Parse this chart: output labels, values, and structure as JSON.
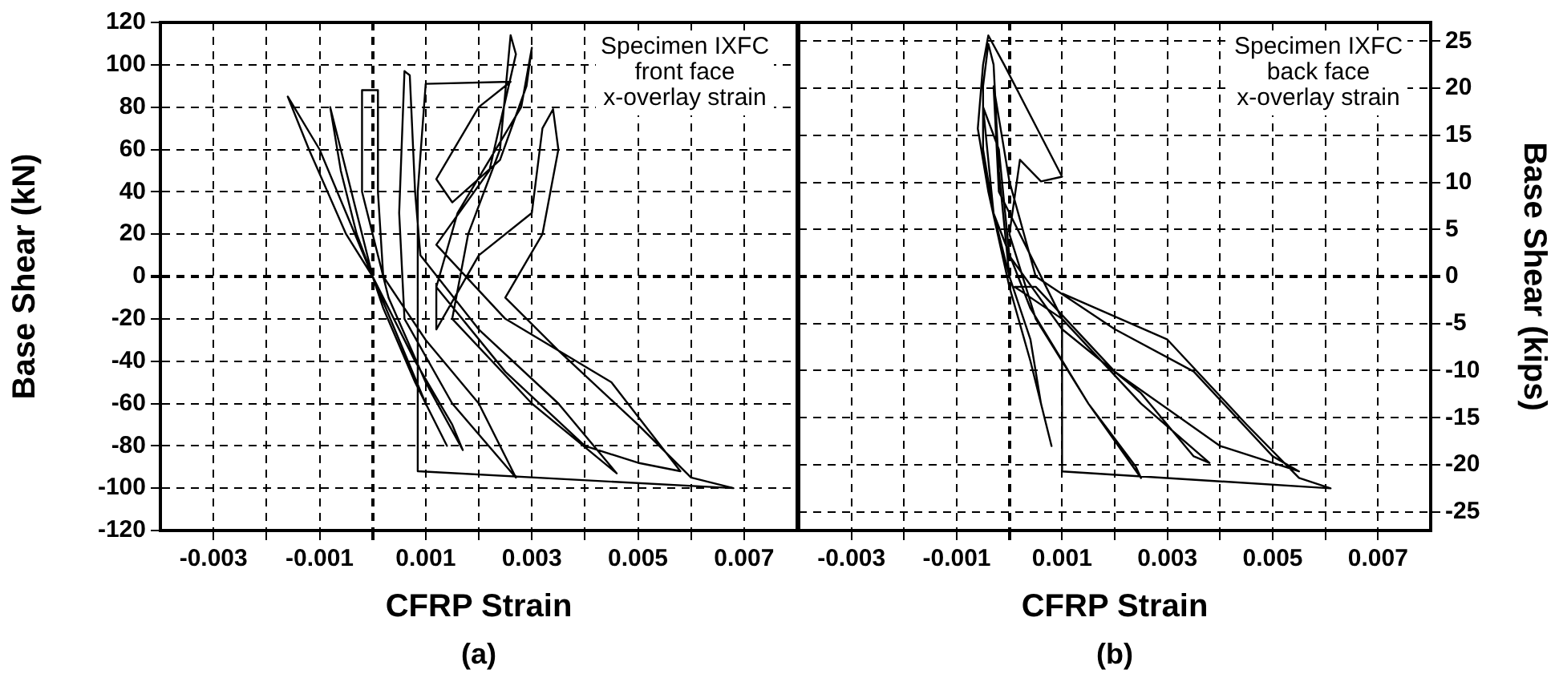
{
  "chart_data": [
    {
      "type": "line",
      "xlabel": "CFRP Strain",
      "ylabel": "Base Shear (kN)",
      "annotations": [
        "Specimen IXFC front face x-overlay strain",
        "(a)"
      ],
      "xlim": [
        -0.004,
        0.008
      ],
      "xticks": [
        -0.003,
        {
          "value": -0.002,
          "label": null
        },
        -0.001,
        {
          "value": 0,
          "label": null
        },
        0.001,
        {
          "value": 0.002,
          "label": null
        },
        0.003,
        {
          "value": 0.004,
          "label": null
        },
        0.005,
        {
          "value": 0.006,
          "label": null
        },
        0.007
      ],
      "ylim": [
        -120,
        120
      ],
      "yticks": [
        -120,
        -100,
        -80,
        -60,
        -40,
        -20,
        0,
        20,
        40,
        60,
        80,
        100,
        120
      ],
      "grid": true,
      "legend": false,
      "marker": "none",
      "line_style": "solid",
      "series": [
        {
          "color": "#000000",
          "x": [
            0,
            -0.0003,
            -0.0006,
            -0.0008,
            -0.0004,
            0,
            0.0005,
            0.001,
            0.0014,
            0.0008,
            0.0002,
            0,
            -0.0005,
            -0.001,
            -0.0016,
            -0.0012,
            -0.0005,
            0,
            0.0008,
            0.0015,
            0.0017,
            0.001,
            0.0003,
            -0.0002,
            -0.0002,
            0.0001,
            0.0001,
            0.0002,
            0.001,
            0.002,
            0.0025,
            0.0027,
            0.0015,
            0.0006,
            0.0005,
            0.0006,
            0.0007,
            0.0008,
            0.0009,
            0.002,
            0.0035,
            0.0045,
            0.0046,
            0.003,
            0.0015,
            0.0018,
            0.0024,
            0.0026,
            0.0027,
            0.0022,
            0.0012,
            0.0025,
            0.0045,
            0.0058,
            0.005,
            0.004,
            0.0025,
            0.0012,
            0.0016,
            0.0028,
            0.003,
            0.0029,
            0.0024,
            0.0015,
            0.0012,
            0.002,
            0.0026,
            0.001,
            0.00085,
            0.00085,
            0.0068,
            0.006,
            0.005,
            0.0035,
            0.0025,
            0.0032,
            0.0035,
            0.0034,
            0.0032,
            0.003,
            0.002,
            0.0012,
            0.0012
          ],
          "values": [
            0,
            20,
            50,
            80,
            40,
            0,
            -30,
            -60,
            -80,
            -50,
            -15,
            0,
            30,
            60,
            85,
            60,
            20,
            0,
            -40,
            -70,
            -82,
            -50,
            -10,
            40,
            88,
            88,
            40,
            0,
            -30,
            -60,
            -85,
            -95,
            -60,
            -20,
            30,
            97,
            95,
            40,
            10,
            -25,
            -60,
            -90,
            -93,
            -60,
            -20,
            20,
            60,
            114,
            105,
            50,
            15,
            -20,
            -50,
            -92,
            -88,
            -80,
            -45,
            -5,
            30,
            80,
            108,
            90,
            55,
            35,
            46,
            80,
            92,
            91,
            40,
            -92,
            -100,
            -95,
            -70,
            -35,
            -10,
            20,
            60,
            79,
            70,
            30,
            10,
            -25,
            -3
          ]
        }
      ]
    },
    {
      "type": "line",
      "xlabel": "CFRP Strain",
      "ylabel": "Base Shear (kips)",
      "annotations": [
        "Specimen IXFC back face x-overlay strain",
        "(b)"
      ],
      "xlim": [
        -0.004,
        0.008
      ],
      "xticks": [
        -0.003,
        {
          "value": -0.002,
          "label": null
        },
        -0.001,
        {
          "value": 0,
          "label": null
        },
        0.001,
        {
          "value": 0.002,
          "label": null
        },
        0.003,
        {
          "value": 0.004,
          "label": null
        },
        0.005,
        {
          "value": 0.006,
          "label": null
        },
        0.007
      ],
      "ylim": [
        -26.98,
        26.98
      ],
      "yticks": [
        -25,
        -20,
        -15,
        -10,
        -5,
        0,
        5,
        10,
        15,
        20,
        25
      ],
      "grid": true,
      "legend": false,
      "marker": "none",
      "line_style": "solid",
      "series": [
        {
          "color": "#000000",
          "x": [
            0,
            -0.0003,
            -0.0005,
            -0.0005,
            -0.0004,
            -0.0003,
            -0.0002,
            0,
            0.0004,
            0.0006,
            0.0008,
            0.0004,
            0,
            -0.0004,
            -0.0006,
            -0.0005,
            -0.0004,
            -0.0001,
            0.001,
            0.0006,
            0.0002,
            0,
            0.0005,
            0.0015,
            0.0024,
            0.0025,
            0.0015,
            0.0004,
            -0.0003,
            -0.0005,
            -0.0002,
            0,
            0.001,
            0.0025,
            0.0035,
            0.0038,
            0.0025,
            0.001,
            -0.0002,
            -0.0003,
            0,
            0.0005,
            0.002,
            0.0035,
            0.005,
            0.0055,
            0.004,
            0.002,
            0.0005,
            0.0001,
            0.001,
            0.001,
            0.0061,
            0.0055,
            0.0045,
            0.003,
            0.001
          ],
          "values": [
            0,
            6.7,
            13.5,
            20.2,
            24.7,
            22.5,
            11.2,
            0,
            -6.7,
            -13.5,
            -18,
            -9,
            -1.1,
            9,
            15.7,
            22.5,
            25.6,
            22.5,
            10.6,
            10.1,
            12.4,
            4.5,
            -4.5,
            -13.5,
            -20.2,
            -21.4,
            -13.5,
            -3.4,
            6.7,
            18,
            13.5,
            2.2,
            -5.6,
            -12.4,
            -19.1,
            -19.8,
            -13.5,
            -4.5,
            9,
            20.2,
            10.1,
            0,
            -5.6,
            -10.1,
            -19.1,
            -20.7,
            -18,
            -10.1,
            -1.1,
            -1.1,
            -4.5,
            -20.7,
            -22.5,
            -21.4,
            -15.7,
            -6.7,
            -1.8
          ]
        }
      ]
    }
  ]
}
